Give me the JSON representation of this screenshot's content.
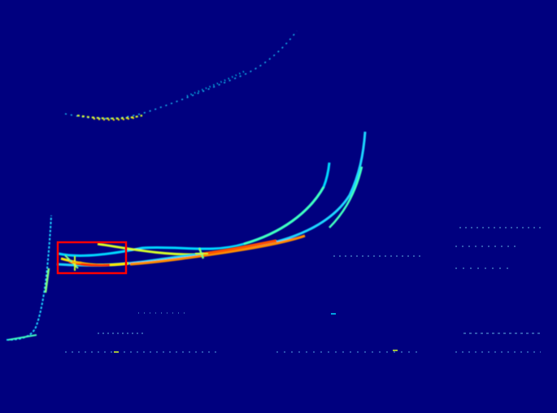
{
  "image": {
    "description_colormap": "jet",
    "background_color": "#00007f",
    "highlight_box_color": "#ff0000"
  }
}
